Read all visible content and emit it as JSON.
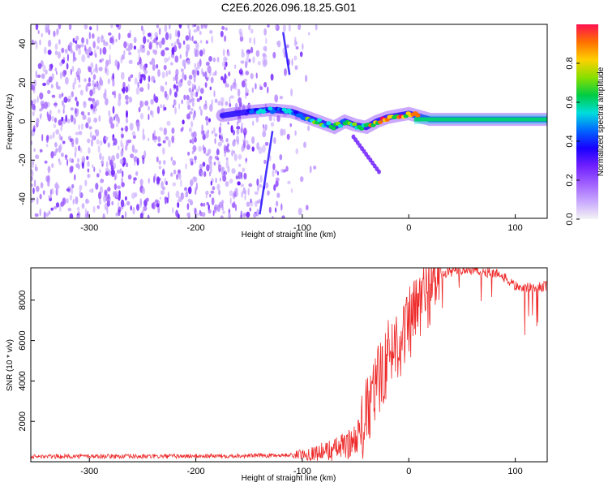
{
  "title": "C2E6.2026.096.18.25.G01",
  "colors": {
    "snr_line": "#ee2a2a",
    "colormap": [
      "#f4f4f4",
      "#c8a8ff",
      "#a060ff",
      "#7020ff",
      "#1800ff",
      "#0066ff",
      "#00dddd",
      "#00cc44",
      "#88e000",
      "#ffd000",
      "#ff7000",
      "#ff1050"
    ]
  },
  "chart_data": [
    {
      "type": "heatmap",
      "xlabel": "Height of straight line (km)",
      "ylabel": "Frequency (Hz)",
      "xlim": [
        -355,
        130
      ],
      "ylim": [
        -50,
        50
      ],
      "xticks": [
        -300,
        -200,
        -100,
        0,
        100
      ],
      "yticks": [
        -40,
        -20,
        0,
        20,
        40
      ],
      "colorbar": {
        "label": "Normalized spectral amplitude",
        "range": [
          0.0,
          1.0
        ],
        "ticks": [
          "0.0",
          "0.2",
          "0.4",
          "0.6",
          "0.8"
        ]
      },
      "signal_track": [
        [
          -175,
          3
        ],
        [
          -150,
          5
        ],
        [
          -130,
          6
        ],
        [
          -110,
          5
        ],
        [
          -95,
          2
        ],
        [
          -80,
          -1
        ],
        [
          -70,
          -3
        ],
        [
          -60,
          0
        ],
        [
          -50,
          -2
        ],
        [
          -40,
          -3
        ],
        [
          -30,
          0
        ],
        [
          -20,
          2
        ],
        [
          -10,
          3
        ],
        [
          0,
          4
        ],
        [
          20,
          1
        ],
        [
          50,
          1
        ],
        [
          80,
          1
        ],
        [
          110,
          1
        ],
        [
          130,
          1
        ]
      ],
      "noise_region": [
        -355,
        -95
      ]
    },
    {
      "type": "line",
      "xlabel": "Height of straight line (km)",
      "ylabel": "SNR (10 * v/v)",
      "xlim": [
        -355,
        130
      ],
      "ylim": [
        0,
        9600
      ],
      "xticks": [
        -300,
        -200,
        -100,
        0,
        100
      ],
      "yticks": [
        2000,
        4000,
        6000,
        8000
      ],
      "series": [
        {
          "x": [
            -355,
            -300,
            -250,
            -200,
            -150,
            -110,
            -90,
            -70,
            -55,
            -45,
            -38,
            -32,
            -25,
            -18,
            -12,
            -5,
            0,
            10,
            20,
            30,
            40,
            55,
            70,
            85,
            100,
            115,
            130
          ],
          "y": [
            250,
            280,
            260,
            280,
            300,
            330,
            420,
            600,
            900,
            1500,
            2500,
            3500,
            4500,
            5400,
            5900,
            6200,
            6700,
            7800,
            8600,
            9200,
            9400,
            9500,
            9400,
            9300,
            8700,
            8600,
            8700
          ]
        }
      ]
    }
  ]
}
